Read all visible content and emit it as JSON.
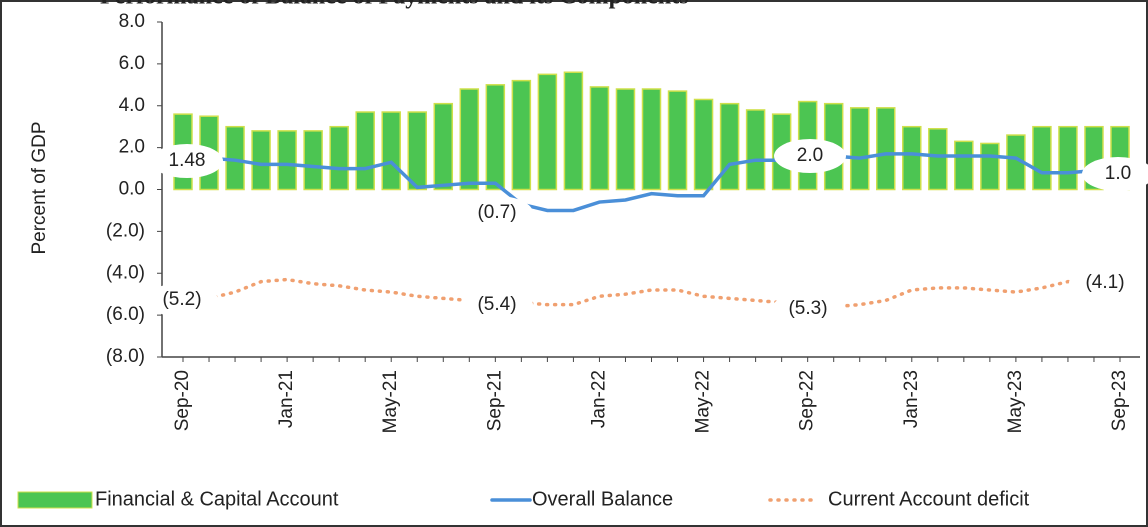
{
  "chart_data": {
    "type": "bar_line",
    "title": "Performance of Balance of Payments and its Components",
    "ylabel": "Percent of GDP",
    "categories": [
      "Sep-20",
      null,
      null,
      null,
      "Jan-21",
      null,
      null,
      null,
      "May-21",
      null,
      null,
      null,
      "Sep-21",
      null,
      null,
      null,
      "Jan-22",
      null,
      null,
      null,
      "May-22",
      null,
      null,
      null,
      "Sep-22",
      null,
      null,
      null,
      "Jan-23",
      null,
      null,
      null,
      "May-23",
      null,
      null,
      null,
      "Sep-23"
    ],
    "series": [
      {
        "name": "Financial & Capital Account",
        "type": "bar",
        "color": "#4cc552",
        "values": [
          3.6,
          3.5,
          3.0,
          2.8,
          2.8,
          2.8,
          3.0,
          3.7,
          3.7,
          3.7,
          4.1,
          4.8,
          5.0,
          5.2,
          5.5,
          5.6,
          4.9,
          4.8,
          4.8,
          4.7,
          4.3,
          4.1,
          3.8,
          3.6,
          4.2,
          4.1,
          3.9,
          3.9,
          3.0,
          2.9,
          2.3,
          2.2,
          2.6,
          3.0,
          3.0,
          3.0,
          3.0
        ]
      },
      {
        "name": "Overall Balance",
        "type": "line",
        "color": "#4a8fd8",
        "values": [
          1.48,
          1.5,
          1.4,
          1.2,
          1.2,
          1.1,
          1.0,
          1.0,
          1.3,
          0.1,
          0.2,
          0.3,
          0.3,
          -0.7,
          -1.0,
          -1.0,
          -0.6,
          -0.5,
          -0.2,
          -0.3,
          -0.3,
          1.2,
          1.4,
          1.4,
          2.0,
          1.6,
          1.5,
          1.7,
          1.7,
          1.6,
          1.6,
          1.6,
          1.5,
          0.8,
          0.8,
          0.9,
          1.0
        ]
      },
      {
        "name": "Current Account deficit",
        "type": "dotted",
        "color": "#f0a070",
        "values": [
          -5.2,
          -5.2,
          -4.9,
          -4.4,
          -4.3,
          -4.5,
          -4.6,
          -4.8,
          -4.9,
          -5.1,
          -5.2,
          -5.3,
          -5.4,
          -5.4,
          -5.5,
          -5.5,
          -5.1,
          -5.0,
          -4.8,
          -4.8,
          -5.1,
          -5.2,
          -5.3,
          -5.4,
          -5.3,
          -5.6,
          -5.5,
          -5.3,
          -4.8,
          -4.7,
          -4.7,
          -4.8,
          -4.9,
          -4.7,
          -4.4,
          -4.3,
          -4.1
        ]
      }
    ],
    "annotations": [
      "1.48",
      "(0.7)",
      "2.0",
      "1.0",
      "(5.2)",
      "(5.4)",
      "(5.3)",
      "(4.1)"
    ],
    "ylim": [
      -8,
      8
    ],
    "yticks": [
      {
        "value": 8,
        "label": "8.0"
      },
      {
        "value": 6,
        "label": "6.0"
      },
      {
        "value": 4,
        "label": "4.0"
      },
      {
        "value": 2,
        "label": "2.0"
      },
      {
        "value": 0,
        "label": "0.0"
      },
      {
        "value": -2,
        "label": "(2.0)"
      },
      {
        "value": -4,
        "label": "(4.0)"
      },
      {
        "value": -6,
        "label": "(6.0)"
      },
      {
        "value": -8,
        "label": "(8.0)"
      }
    ],
    "legend": "bottom"
  }
}
